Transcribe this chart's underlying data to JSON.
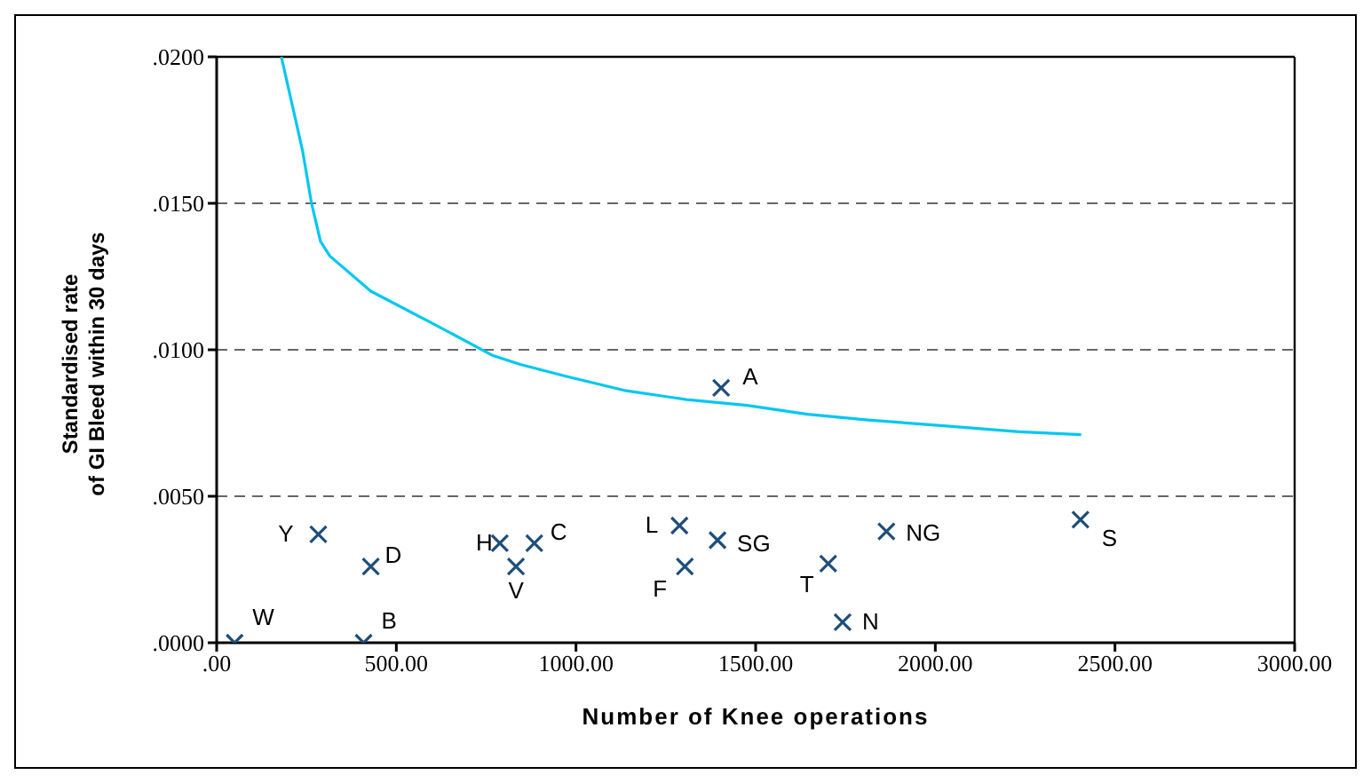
{
  "chart_data": {
    "type": "scatter",
    "xlabel": "Number of Knee operations",
    "ylabel": "Standardised rate\nof GI Bleed within 30 days",
    "xlim": [
      0,
      3000
    ],
    "xticks": [
      {
        "value": 0,
        "label": ".00"
      },
      {
        "value": 500,
        "label": "500.00"
      },
      {
        "value": 1000,
        "label": "1000.00"
      },
      {
        "value": 1500,
        "label": "1500.00"
      },
      {
        "value": 2000,
        "label": "2000.00"
      },
      {
        "value": 2500,
        "label": "2500.00"
      },
      {
        "value": 3000,
        "label": "3000.00"
      }
    ],
    "ylim": [
      0,
      0.02
    ],
    "yticks": [
      {
        "value": 0,
        "label": ".0000"
      },
      {
        "value": 0.005,
        "label": ".0050"
      },
      {
        "value": 0.01,
        "label": ".0100"
      },
      {
        "value": 0.015,
        "label": ".0150"
      },
      {
        "value": 0.02,
        "label": ".0200"
      }
    ],
    "grid": "y",
    "legend": false,
    "series": [
      {
        "marker": "cross",
        "color": "#1f4e79",
        "x": [
          50,
          409,
          283,
          429,
          788,
          833,
          884,
          1288,
          1303,
          1394,
          1702,
          1742,
          1864,
          2404,
          1404
        ],
        "values": [
          0,
          0,
          0.0037,
          0.0026,
          0.0034,
          0.0026,
          0.0034,
          0.004,
          0.0026,
          0.0035,
          0.0027,
          0.0007,
          0.0038,
          0.0042,
          0.0087
        ]
      },
      {
        "type": "line",
        "marker": "none",
        "line_style": "solid",
        "color": "#00c8f0",
        "x": [
          180,
          239,
          264,
          289,
          315,
          429,
          601,
          769,
          845,
          971,
          1140,
          1308,
          1476,
          1644,
          1813,
          2031,
          2234,
          2406
        ],
        "values": [
          0.02,
          0.0168,
          0.015,
          0.0137,
          0.0132,
          0.012,
          0.0109,
          0.0098,
          0.0095,
          0.0091,
          0.0086,
          0.0083,
          0.0081,
          0.0078,
          0.0076,
          0.0074,
          0.0072,
          0.0071
        ]
      }
    ],
    "annotations": [
      {
        "text": "W",
        "x": 50,
        "y": 0
      },
      {
        "text": "B",
        "x": 409,
        "y": 0
      },
      {
        "text": "Y",
        "x": 283,
        "y": 0.0037
      },
      {
        "text": "D",
        "x": 429,
        "y": 0.0026
      },
      {
        "text": "H",
        "x": 788,
        "y": 0.0034
      },
      {
        "text": "V",
        "x": 833,
        "y": 0.0026
      },
      {
        "text": "C",
        "x": 884,
        "y": 0.0034
      },
      {
        "text": "L",
        "x": 1288,
        "y": 0.004
      },
      {
        "text": "F",
        "x": 1303,
        "y": 0.0026
      },
      {
        "text": "SG",
        "x": 1394,
        "y": 0.0035
      },
      {
        "text": "T",
        "x": 1702,
        "y": 0.0027
      },
      {
        "text": "N",
        "x": 1742,
        "y": 0.0007
      },
      {
        "text": "NG",
        "x": 1864,
        "y": 0.0038
      },
      {
        "text": "S",
        "x": 2404,
        "y": 0.0042
      },
      {
        "text": "A",
        "x": 1404,
        "y": 0.0087
      }
    ]
  }
}
